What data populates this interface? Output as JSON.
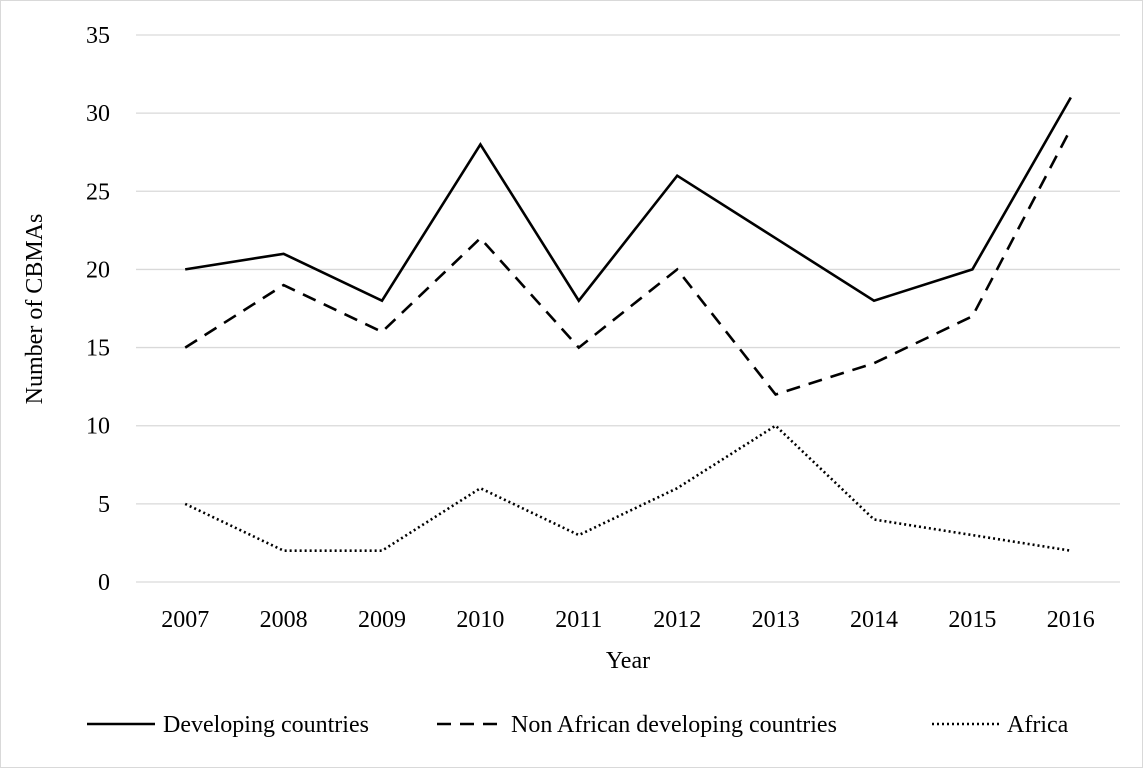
{
  "chart_data": {
    "type": "line",
    "title": "",
    "xlabel": "Year",
    "ylabel": "Number of CBMAs",
    "categories": [
      "2007",
      "2008",
      "2009",
      "2010",
      "2011",
      "2012",
      "2013",
      "2014",
      "2015",
      "2016"
    ],
    "ylim": [
      0,
      35
    ],
    "yticks": [
      "0",
      "5",
      "10",
      "15",
      "20",
      "25",
      "30",
      "35"
    ],
    "grid": "horizontal",
    "legend_position": "bottom",
    "series": [
      {
        "name": "Developing countries",
        "values": [
          20,
          21,
          18,
          28,
          18,
          26,
          22,
          18,
          20,
          31
        ],
        "dash": "solid"
      },
      {
        "name": "Non African developing countries",
        "values": [
          15,
          19,
          16,
          22,
          15,
          20,
          12,
          14,
          17,
          29
        ],
        "dash": "dashed"
      },
      {
        "name": "Africa",
        "values": [
          5,
          2,
          2,
          6,
          3,
          6,
          10,
          4,
          3,
          2
        ],
        "dash": "dotted"
      }
    ],
    "colors": {
      "line": "#000000",
      "grid": "#d9d9d9",
      "border": "#d9d9d9"
    }
  }
}
